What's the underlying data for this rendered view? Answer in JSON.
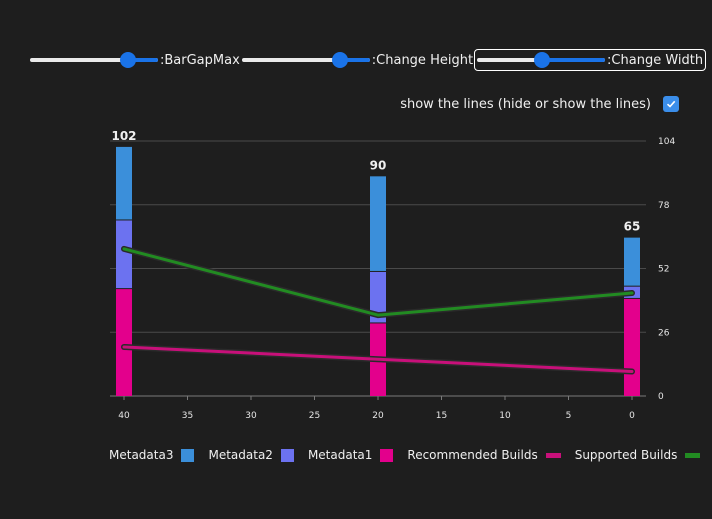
{
  "controls": {
    "bar_gap_label": ":BarGapMax",
    "change_height_label": ":Change Height",
    "change_width_label": ":Change Width",
    "show_lines_label": "show the lines (hide or show the lines)",
    "show_lines_checked": true
  },
  "colors": {
    "metadata3": "#3b8fda",
    "metadata2": "#6c72f0",
    "metadata1": "#e3008c",
    "recommended_line": "#c8107a",
    "supported_line": "#228b22",
    "grid": "#4a4a4a"
  },
  "chart_data": {
    "type": "bar",
    "x": [
      40,
      20,
      0
    ],
    "x_ticks": [
      "40",
      "35",
      "30",
      "25",
      "20",
      "15",
      "10",
      "5",
      "0"
    ],
    "y_ticks": [
      "0",
      "26",
      "52",
      "78",
      "104"
    ],
    "ylim": [
      0,
      104
    ],
    "y_axis_side": "right",
    "totals": [
      "102",
      "90",
      "65"
    ],
    "stacked_series": [
      {
        "name": "Metadata1",
        "values": [
          44,
          30,
          40
        ]
      },
      {
        "name": "Metadata2",
        "values": [
          28,
          21,
          5
        ]
      },
      {
        "name": "Metadata3",
        "values": [
          30,
          39,
          20
        ]
      }
    ],
    "line_series": [
      {
        "name": "Recommended Builds",
        "values": [
          20,
          15,
          10
        ]
      },
      {
        "name": "Supported Builds",
        "values": [
          60,
          33,
          42
        ]
      }
    ],
    "legend": [
      "Metadata3",
      "Metadata2",
      "Metadata1",
      "Recommended Builds",
      "Supported Builds"
    ],
    "legend_position": "bottom",
    "grid": true
  }
}
